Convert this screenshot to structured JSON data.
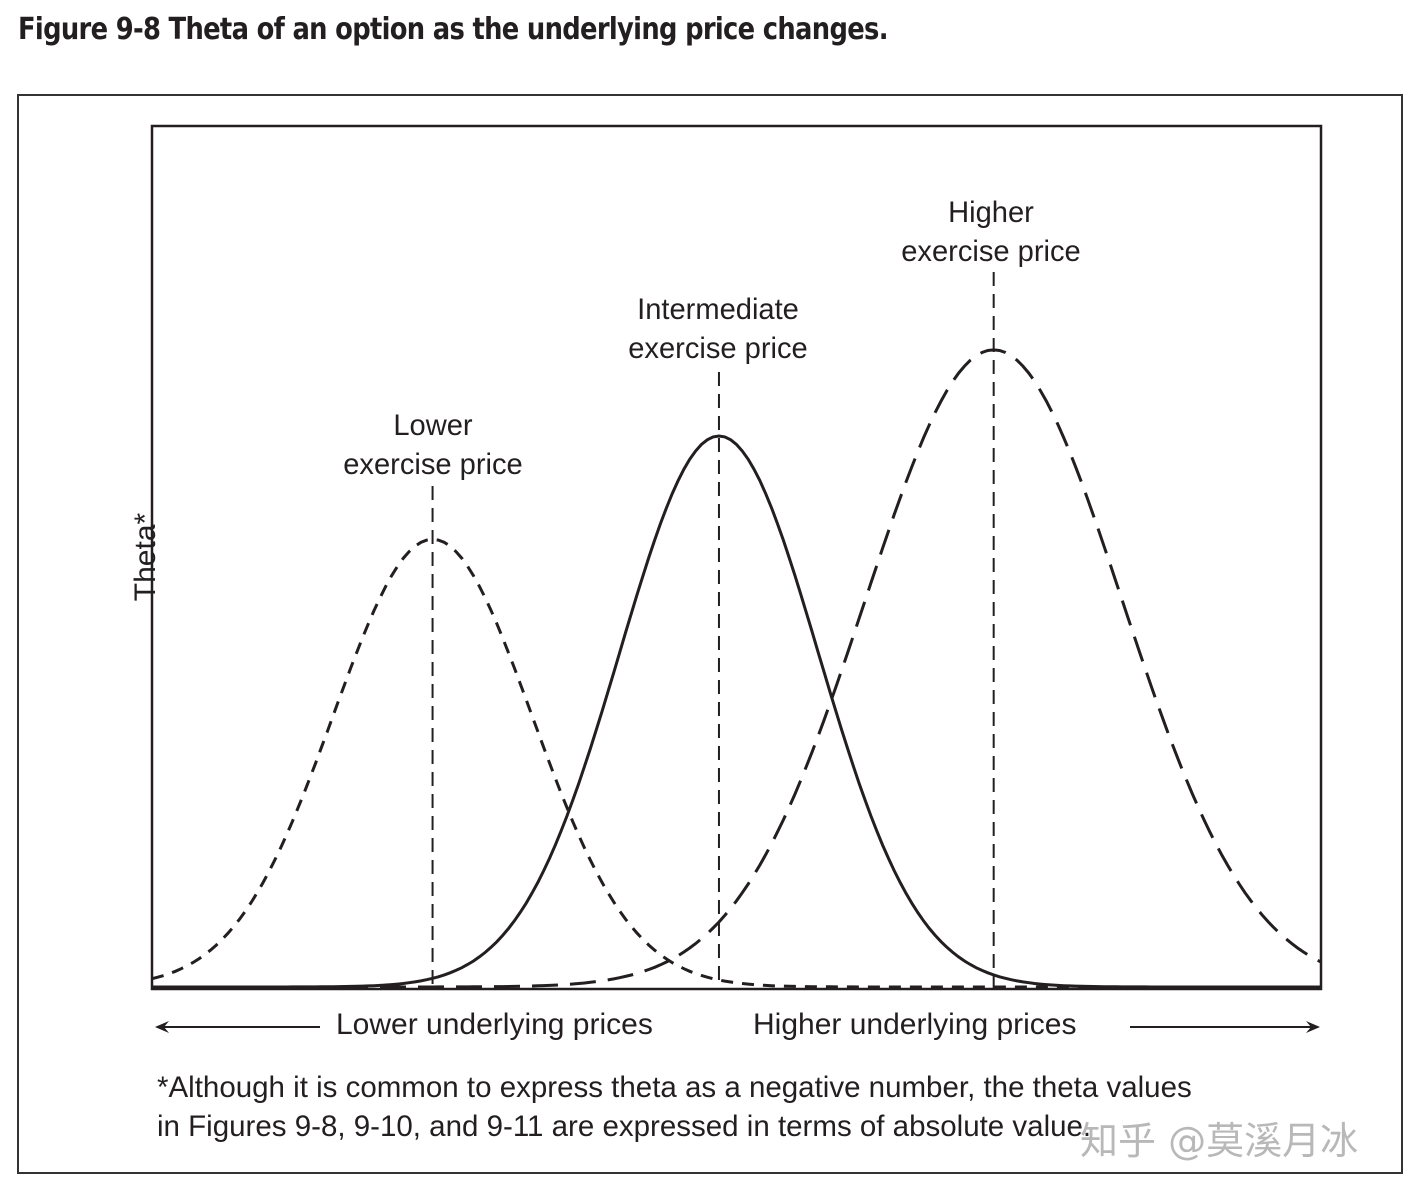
{
  "figure": {
    "number": "Figure 9-8",
    "title": "Figure 9-8  Theta of an option as the underlying price changes."
  },
  "axes": {
    "ylabel": "Theta*",
    "x_left_label": "Lower underlying prices",
    "x_right_label": "Higher underlying prices"
  },
  "annotations": {
    "lower": {
      "line1": "Lower",
      "line2": "exercise price"
    },
    "intermediate": {
      "line1": "Intermediate",
      "line2": "exercise price"
    },
    "higher": {
      "line1": "Higher",
      "line2": "exercise price"
    }
  },
  "footnote": {
    "line1": "*Although it is common to express theta as a negative number, the theta values",
    "line2": "in Figures 9-8, 9-10, and 9-11 are expressed in terms of absolute value."
  },
  "watermark": "知乎 @莫溪月冰",
  "colors": {
    "ink": "#231f20",
    "frame": "#333333",
    "background": "#ffffff"
  },
  "chart_data": {
    "type": "line",
    "title": "Theta of an option as the underlying price changes.",
    "xlabel": "Underlying price (Lower ← → Higher)",
    "ylabel": "Theta*",
    "grid": false,
    "legend": "none (curves labeled directly)",
    "x_range": [
      0,
      100
    ],
    "y_range": [
      0,
      100
    ],
    "note": "Qualitative figure, no numeric ticks; values are relative estimates read from pixel positions (x as % of plot width, peak height as % of plot height).",
    "series": [
      {
        "name": "Lower exercise price",
        "style": "short-dashed",
        "peak_x": 24,
        "peak_y": 52,
        "spread": 8.5
      },
      {
        "name": "Intermediate exercise price",
        "style": "solid",
        "peak_x": 48.5,
        "peak_y": 64,
        "spread": 8.5
      },
      {
        "name": "Higher exercise price",
        "style": "long-dashed",
        "peak_x": 72,
        "peak_y": 74,
        "spread": 11
      }
    ],
    "reference_lines": [
      {
        "at_x": 24,
        "label": "Lower exercise price",
        "style": "dashed vertical"
      },
      {
        "at_x": 48.5,
        "label": "Intermediate exercise price",
        "style": "dashed vertical"
      },
      {
        "at_x": 72,
        "label": "Higher exercise price",
        "style": "dashed vertical"
      }
    ]
  }
}
